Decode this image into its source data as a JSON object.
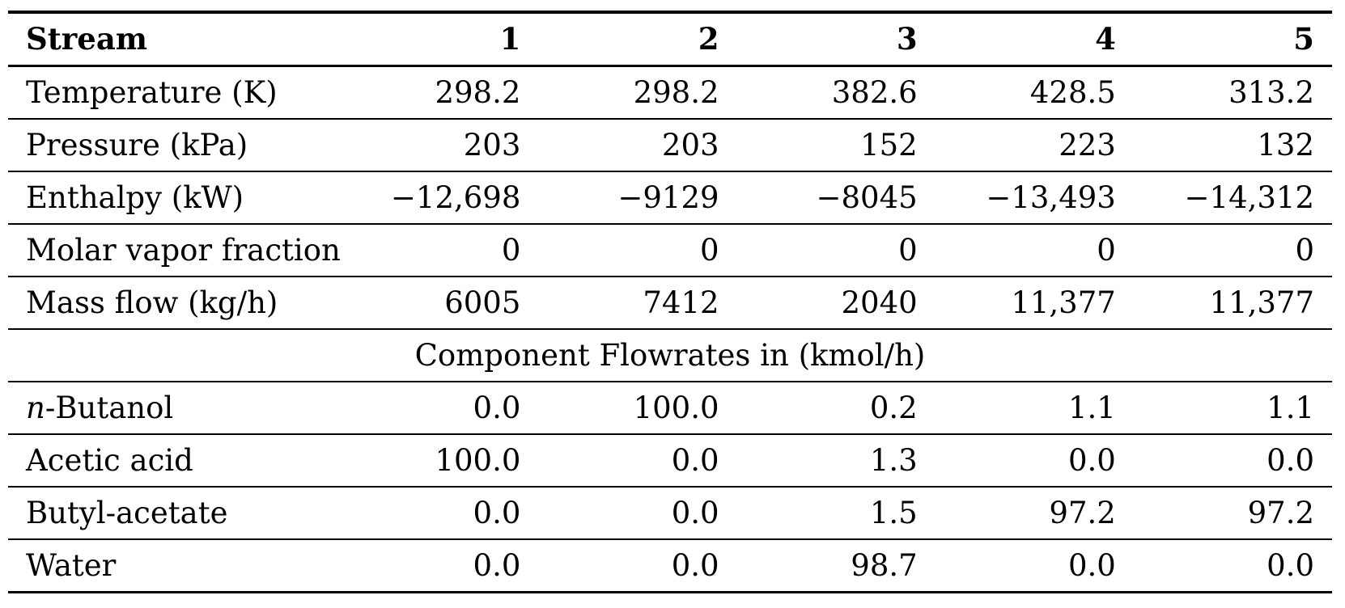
{
  "colors": {
    "background": "#ffffff",
    "text": "#000000",
    "rule": "#000000"
  },
  "table": {
    "header": {
      "label": "Stream",
      "columns": [
        "1",
        "2",
        "3",
        "4",
        "5"
      ]
    },
    "property_rows": [
      {
        "label": "Temperature (K)",
        "values": [
          "298.2",
          "298.2",
          "382.6",
          "428.5",
          "313.2"
        ]
      },
      {
        "label": "Pressure (kPa)",
        "values": [
          "203",
          "203",
          "152",
          "223",
          "132"
        ]
      },
      {
        "label": "Enthalpy (kW)",
        "values": [
          "−12,698",
          "−9129",
          "−8045",
          "−13,493",
          "−14,312"
        ]
      },
      {
        "label": "Molar vapor fraction",
        "values": [
          "0",
          "0",
          "0",
          "0",
          "0"
        ]
      },
      {
        "label": "Mass flow (kg/h)",
        "values": [
          "6005",
          "7412",
          "2040",
          "11,377",
          "11,377"
        ]
      }
    ],
    "section_header": "Component Flowrates in (kmol/h)",
    "component_rows": [
      {
        "label_italic": "n",
        "label_rest": "-Butanol",
        "values": [
          "0.0",
          "100.0",
          "0.2",
          "1.1",
          "1.1"
        ]
      },
      {
        "label": "Acetic acid",
        "values": [
          "100.0",
          "0.0",
          "1.3",
          "0.0",
          "0.0"
        ]
      },
      {
        "label": "Butyl-acetate",
        "values": [
          "0.0",
          "0.0",
          "1.5",
          "97.2",
          "97.2"
        ]
      },
      {
        "label": "Water",
        "values": [
          "0.0",
          "0.0",
          "98.7",
          "0.0",
          "0.0"
        ]
      }
    ]
  }
}
